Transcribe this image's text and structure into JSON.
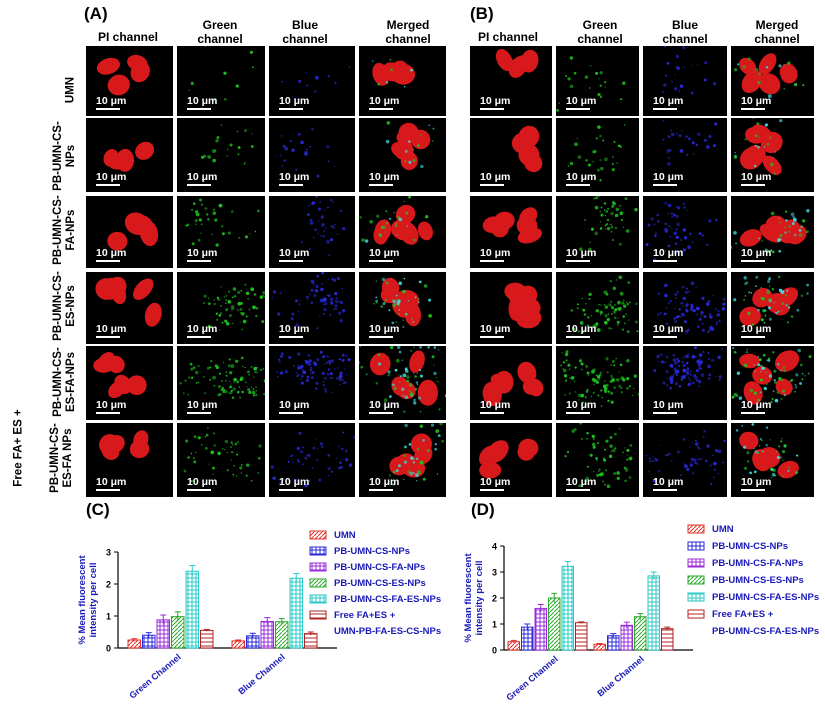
{
  "panels": {
    "A": "(A)",
    "B": "(B)",
    "C": "(C)",
    "D": "(D)"
  },
  "columns": [
    "PI channel",
    "Green channel",
    "Blue channel",
    "Merged channel"
  ],
  "rows": [
    "UMN",
    "PB-UMN-CS-NPs",
    "PB-UMN-CS-FA-NPs",
    "PB-UMN-CS-ES-NPs",
    "PB-UMN-CS-ES-FA-NPs",
    "PB-UMN-CS-ES-FA NPs"
  ],
  "row_prefix_last": "Free FA+ ES +",
  "scale_bar": "10 μm",
  "colors": {
    "pi_red": "#d8191c",
    "green": "#1fc21f",
    "blue": "#2a2ae0",
    "cyan": "#40e0e0",
    "legend_text": "#1a1ab8"
  },
  "chart_data": [
    {
      "type": "bar",
      "panel": "(C)",
      "ylabel": "% Mean fluorescent intensity per cell",
      "ylim": [
        0,
        3
      ],
      "yticks": [
        0,
        1,
        2,
        3
      ],
      "categories": [
        "Green Channel",
        "Blue Channel"
      ],
      "series": [
        {
          "name": "UMN",
          "values": [
            0.25,
            0.22
          ],
          "errors": [
            0.04,
            0.03
          ]
        },
        {
          "name": "PB-UMN-CS-NPs",
          "values": [
            0.4,
            0.38
          ],
          "errors": [
            0.08,
            0.08
          ]
        },
        {
          "name": "PB-UMN-CS-FA-NPs",
          "values": [
            0.88,
            0.83
          ],
          "errors": [
            0.15,
            0.12
          ]
        },
        {
          "name": "PB-UMN-CS-ES-NPs",
          "values": [
            0.98,
            0.82
          ],
          "errors": [
            0.15,
            0.1
          ]
        },
        {
          "name": "PB-UMN-CS-FA-ES-NPs",
          "values": [
            2.4,
            2.18
          ],
          "errors": [
            0.18,
            0.15
          ]
        },
        {
          "name": "Free FA+ES + UMN-PB-FA-ES-CS-NPs",
          "values": [
            0.55,
            0.45
          ],
          "errors": [
            0.03,
            0.05
          ]
        }
      ],
      "legend": [
        "UMN",
        "PB-UMN-CS-NPs",
        "PB-UMN-CS-FA-NPs",
        "PB-UMN-CS-ES-NPs",
        "PB-UMN-CS-FA-ES-NPs",
        "Free FA+ES +",
        "UMN-PB-FA-ES-CS-NPs"
      ]
    },
    {
      "type": "bar",
      "panel": "(D)",
      "ylabel": "% Mean fluorescent intensity per cell",
      "ylim": [
        0,
        4
      ],
      "yticks": [
        0,
        1,
        2,
        3,
        4
      ],
      "categories": [
        "Green Channel",
        "Blue Channel"
      ],
      "series": [
        {
          "name": "UMN",
          "values": [
            0.32,
            0.22
          ],
          "errors": [
            0.05,
            0.03
          ]
        },
        {
          "name": "PB-UMN-CS-NPs",
          "values": [
            0.88,
            0.55
          ],
          "errors": [
            0.12,
            0.08
          ]
        },
        {
          "name": "PB-UMN-CS-FA-NPs",
          "values": [
            1.6,
            0.95
          ],
          "errors": [
            0.15,
            0.12
          ]
        },
        {
          "name": "PB-UMN-CS-ES-NPs",
          "values": [
            2.0,
            1.28
          ],
          "errors": [
            0.18,
            0.12
          ]
        },
        {
          "name": "PB-UMN-CS-FA-ES-NPs",
          "values": [
            3.22,
            2.85
          ],
          "errors": [
            0.18,
            0.15
          ]
        },
        {
          "name": "Free FA+ES + PB-UMN-CS-FA-ES-NPs",
          "values": [
            1.05,
            0.82
          ],
          "errors": [
            0.03,
            0.06
          ]
        }
      ],
      "legend": [
        "UMN",
        "PB-UMN-CS-NPs",
        "PB-UMN-CS-FA-NPs",
        "PB-UMN-CS-ES-NPs",
        "PB-UMN-CS-FA-ES-NPs",
        "Free FA+ES +",
        "PB-UMN-CS-FA-ES-NPs"
      ]
    }
  ]
}
